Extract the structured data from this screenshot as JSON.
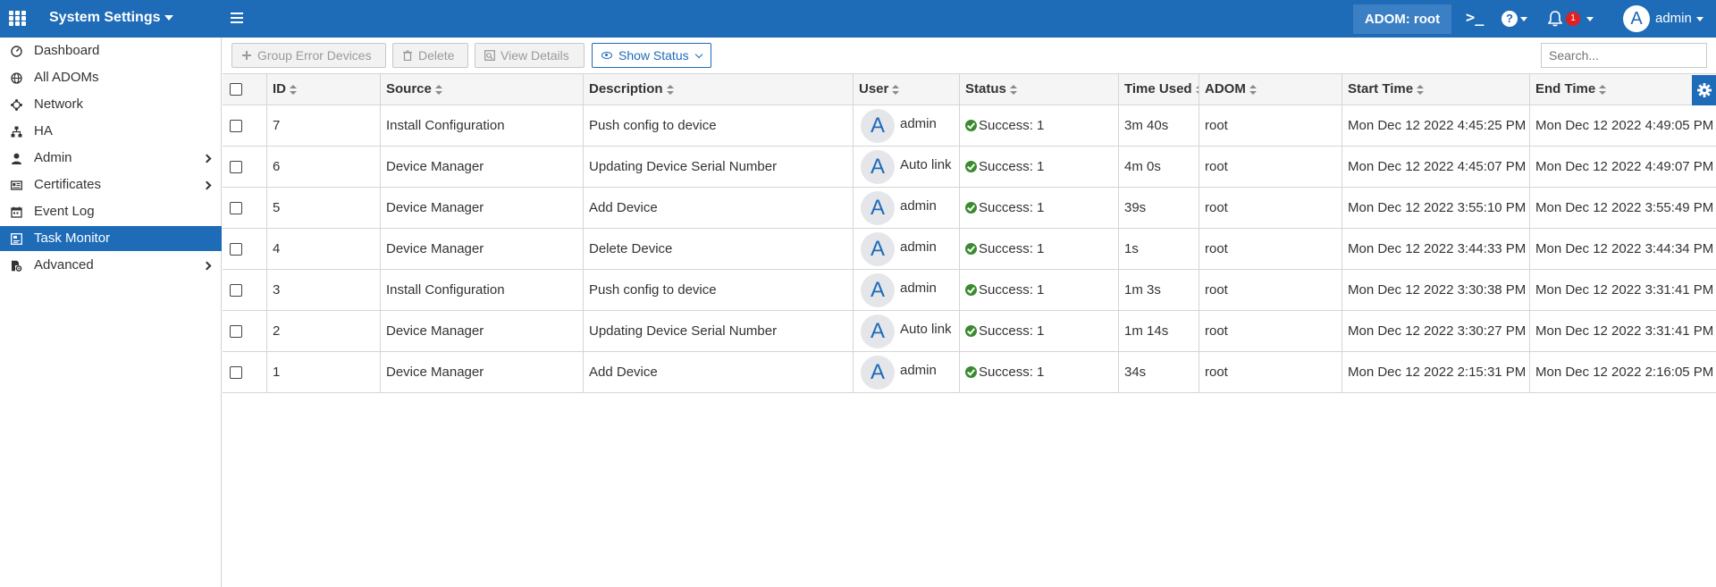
{
  "topbar": {
    "title": "System Settings",
    "adom": "ADOM: root",
    "terminal_glyph": ">_",
    "help_glyph": "?",
    "notification_count": "1",
    "avatar_letter": "A",
    "user": "admin",
    "accent": "#1e6bb8"
  },
  "sidebar": {
    "items": [
      {
        "label": "Dashboard",
        "icon": "dashboard-icon"
      },
      {
        "label": "All ADOMs",
        "icon": "globe-icon"
      },
      {
        "label": "Network",
        "icon": "network-icon"
      },
      {
        "label": "HA",
        "icon": "ha-icon"
      },
      {
        "label": "Admin",
        "icon": "user-icon",
        "expandable": true
      },
      {
        "label": "Certificates",
        "icon": "certificate-icon",
        "expandable": true
      },
      {
        "label": "Event Log",
        "icon": "event-log-icon"
      },
      {
        "label": "Task Monitor",
        "icon": "task-monitor-icon",
        "active": true
      },
      {
        "label": "Advanced",
        "icon": "advanced-icon",
        "expandable": true
      }
    ]
  },
  "toolbar": {
    "group_error": "Group Error Devices",
    "delete": "Delete",
    "view_details": "View Details",
    "show_status": "Show Status",
    "search_placeholder": "Search..."
  },
  "table": {
    "columns": [
      "ID",
      "Source",
      "Description",
      "User",
      "Status",
      "Time Used",
      "ADOM",
      "Start Time",
      "End Time"
    ],
    "rows": [
      {
        "id": "7",
        "source": "Install Configuration",
        "description": "Push config to device",
        "user": "admin",
        "status": "Success: 1",
        "time_used": "3m 40s",
        "adom": "root",
        "start": "Mon Dec 12 2022 4:45:25 PM",
        "end": "Mon Dec 12 2022 4:49:05 PM"
      },
      {
        "id": "6",
        "source": "Device Manager",
        "description": "Updating Device Serial Number",
        "user": "Auto link",
        "status": "Success: 1",
        "time_used": "4m 0s",
        "adom": "root",
        "start": "Mon Dec 12 2022 4:45:07 PM",
        "end": "Mon Dec 12 2022 4:49:07 PM"
      },
      {
        "id": "5",
        "source": "Device Manager",
        "description": "Add Device",
        "user": "admin",
        "status": "Success: 1",
        "time_used": "39s",
        "adom": "root",
        "start": "Mon Dec 12 2022 3:55:10 PM",
        "end": "Mon Dec 12 2022 3:55:49 PM"
      },
      {
        "id": "4",
        "source": "Device Manager",
        "description": "Delete Device",
        "user": "admin",
        "status": "Success: 1",
        "time_used": "1s",
        "adom": "root",
        "start": "Mon Dec 12 2022 3:44:33 PM",
        "end": "Mon Dec 12 2022 3:44:34 PM"
      },
      {
        "id": "3",
        "source": "Install Configuration",
        "description": "Push config to device",
        "user": "admin",
        "status": "Success: 1",
        "time_used": "1m 3s",
        "adom": "root",
        "start": "Mon Dec 12 2022 3:30:38 PM",
        "end": "Mon Dec 12 2022 3:31:41 PM"
      },
      {
        "id": "2",
        "source": "Device Manager",
        "description": "Updating Device Serial Number",
        "user": "Auto link",
        "status": "Success: 1",
        "time_used": "1m 14s",
        "adom": "root",
        "start": "Mon Dec 12 2022 3:30:27 PM",
        "end": "Mon Dec 12 2022 3:31:41 PM"
      },
      {
        "id": "1",
        "source": "Device Manager",
        "description": "Add Device",
        "user": "admin",
        "status": "Success: 1",
        "time_used": "34s",
        "adom": "root",
        "start": "Mon Dec 12 2022 2:15:31 PM",
        "end": "Mon Dec 12 2022 2:16:05 PM"
      }
    ]
  }
}
